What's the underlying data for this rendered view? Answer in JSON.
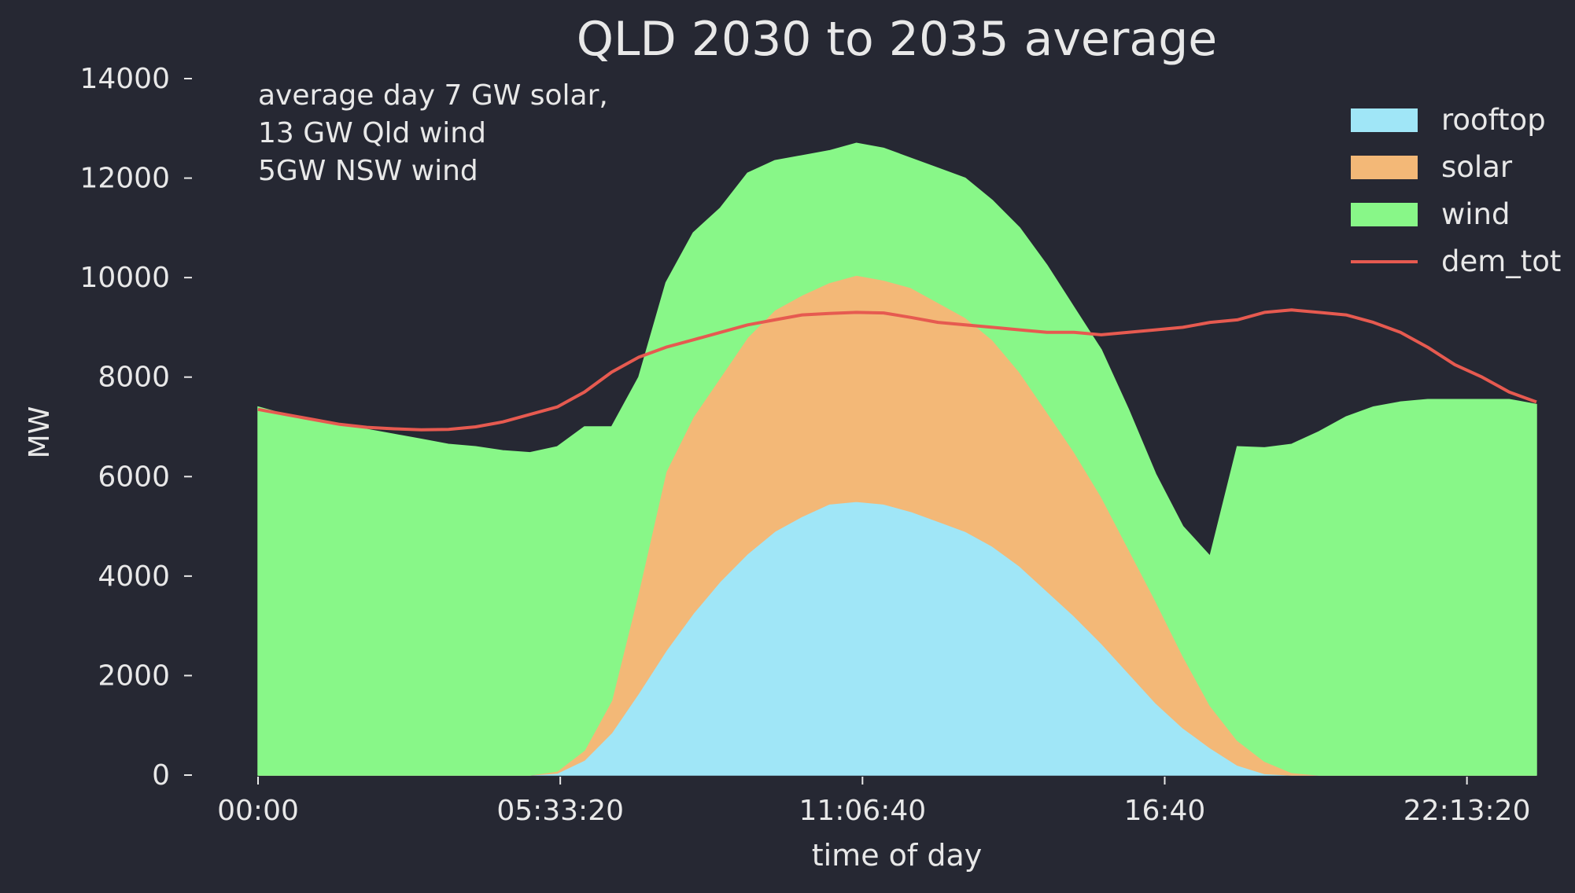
{
  "chart_data": {
    "type": "area",
    "stacked": true,
    "title": "QLD 2030 to 2035 average",
    "xlabel": "time of day",
    "ylabel": "MW",
    "annotation": [
      "average day 7 GW solar,",
      "  13 GW Qld wind",
      " 5GW NSW wind"
    ],
    "xlim": [
      "00:00",
      "23:30"
    ],
    "ylim": [
      0,
      14000
    ],
    "xticks": [
      "00:00",
      "05:33:20",
      "11:06:40",
      "16:40",
      "22:13:20"
    ],
    "yticks": [
      0,
      2000,
      4000,
      6000,
      8000,
      10000,
      12000,
      14000
    ],
    "legend_position": "top-right",
    "colors": {
      "background": "#262833",
      "rooftop": "#a0e6f7",
      "solar": "#f3b877",
      "wind": "#88f788",
      "dem_tot": "#e65a50"
    },
    "x": [
      "00:00",
      "00:30",
      "01:00",
      "01:30",
      "02:00",
      "02:30",
      "03:00",
      "03:30",
      "04:00",
      "04:30",
      "05:00",
      "05:30",
      "06:00",
      "06:30",
      "07:00",
      "07:30",
      "08:00",
      "08:30",
      "09:00",
      "09:30",
      "10:00",
      "10:30",
      "11:00",
      "11:30",
      "12:00",
      "12:30",
      "13:00",
      "13:30",
      "14:00",
      "14:30",
      "15:00",
      "15:30",
      "16:00",
      "16:30",
      "17:00",
      "17:30",
      "18:00",
      "18:30",
      "19:00",
      "19:30",
      "20:00",
      "20:30",
      "21:00",
      "21:30",
      "22:00",
      "22:30",
      "23:00",
      "23:30"
    ],
    "series": [
      {
        "name": "rooftop",
        "kind": "area",
        "values": [
          0,
          0,
          0,
          0,
          0,
          0,
          0,
          0,
          0,
          0,
          0,
          40,
          300,
          850,
          1650,
          2500,
          3250,
          3900,
          4450,
          4900,
          5200,
          5450,
          5500,
          5450,
          5300,
          5100,
          4900,
          4600,
          4200,
          3700,
          3200,
          2650,
          2050,
          1450,
          950,
          550,
          200,
          30,
          0,
          0,
          0,
          0,
          0,
          0,
          0,
          0,
          0,
          0
        ]
      },
      {
        "name": "solar",
        "kind": "area",
        "values": [
          0,
          0,
          0,
          0,
          0,
          0,
          0,
          0,
          0,
          0,
          0,
          40,
          200,
          650,
          2050,
          3600,
          3950,
          4100,
          4350,
          4450,
          4450,
          4450,
          4550,
          4500,
          4500,
          4400,
          4300,
          4150,
          3900,
          3600,
          3300,
          2950,
          2500,
          2050,
          1450,
          850,
          500,
          250,
          50,
          0,
          0,
          0,
          0,
          0,
          0,
          0,
          0,
          0
        ]
      },
      {
        "name": "wind",
        "kind": "area",
        "values": [
          7400,
          7250,
          7150,
          7050,
          6950,
          6850,
          6750,
          6650,
          6600,
          6520,
          6480,
          6520,
          6500,
          5500,
          4300,
          3800,
          3700,
          3400,
          3300,
          3000,
          2800,
          2650,
          2650,
          2650,
          2600,
          2700,
          2800,
          2800,
          2900,
          2950,
          2900,
          2950,
          2800,
          2550,
          2600,
          3000,
          5900,
          6300,
          6600,
          6900,
          7200,
          7400,
          7500,
          7550,
          7550,
          7550,
          7550,
          7450
        ]
      },
      {
        "name": "dem_tot",
        "kind": "line",
        "values": [
          7350,
          7250,
          7150,
          7050,
          6990,
          6960,
          6940,
          6950,
          7000,
          7100,
          7250,
          7400,
          7700,
          8100,
          8400,
          8600,
          8750,
          8900,
          9050,
          9150,
          9250,
          9280,
          9300,
          9290,
          9200,
          9100,
          9050,
          9000,
          8950,
          8900,
          8900,
          8850,
          8900,
          8950,
          9000,
          9100,
          9150,
          9300,
          9350,
          9300,
          9250,
          9100,
          8900,
          8600,
          8250,
          8000,
          7700,
          7500
        ]
      }
    ]
  }
}
